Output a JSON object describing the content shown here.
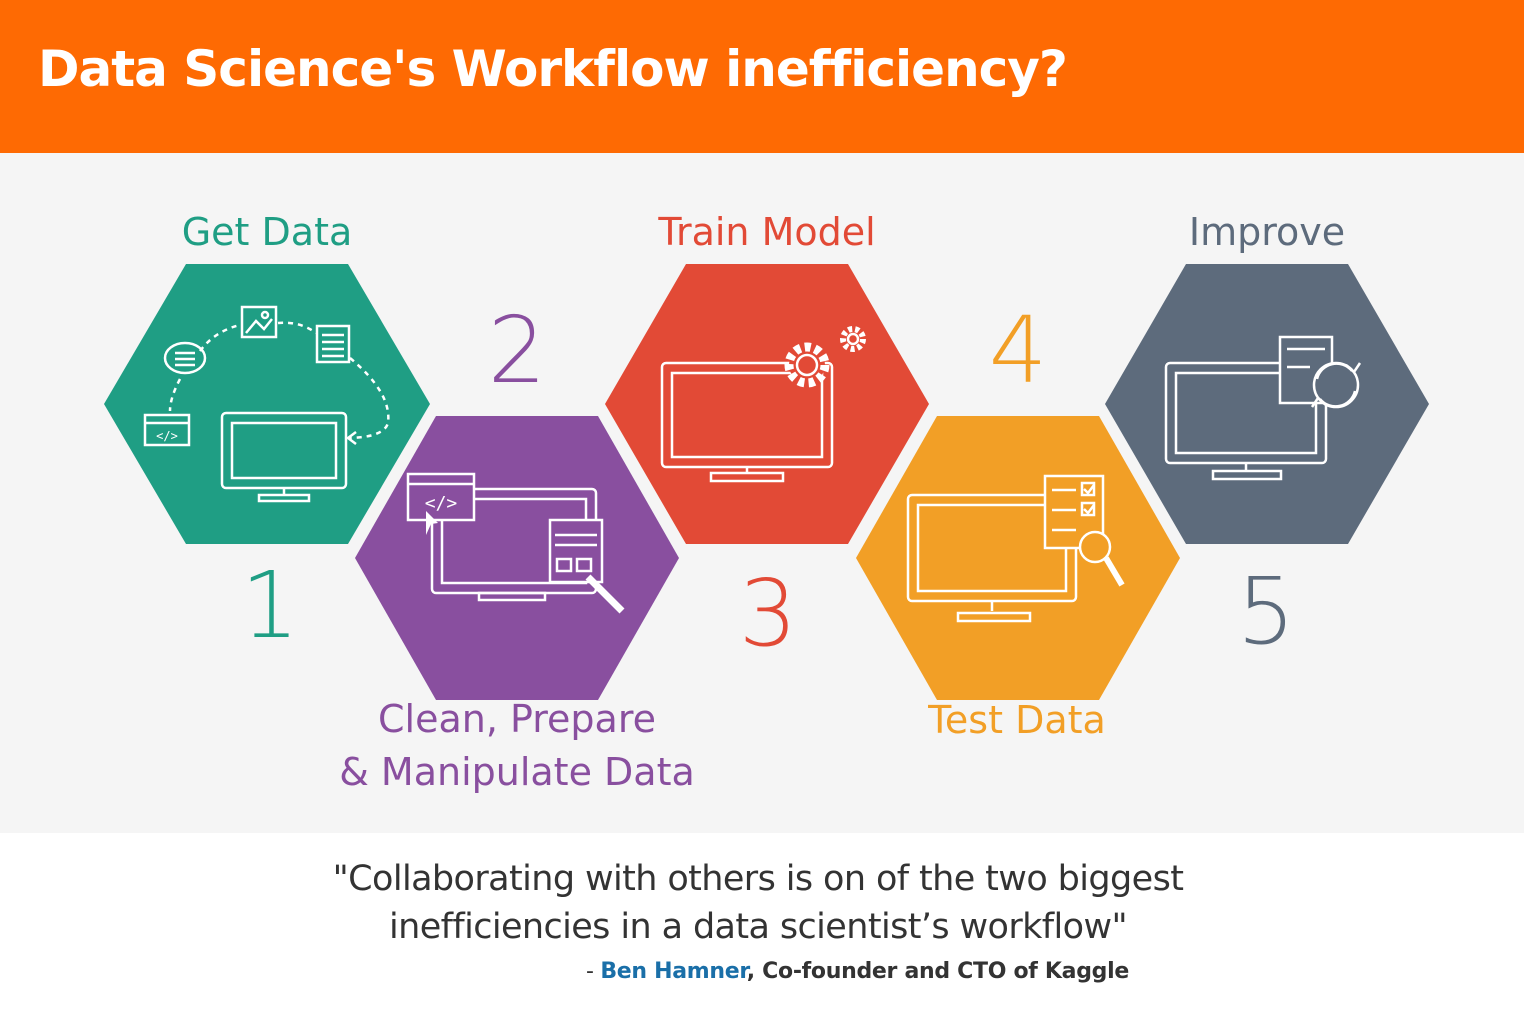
{
  "header": {
    "title": "Data Science's Workflow inefficiency?"
  },
  "steps": [
    {
      "number": "1",
      "label": "Get Data",
      "color": "#1f9e84",
      "icon": "data-sources-to-monitor-icon"
    },
    {
      "number": "2",
      "label_line1": "Clean, Prepare",
      "label_line2": "& Manipulate Data",
      "color": "#894f9f",
      "icon": "code-window-to-monitor-icon"
    },
    {
      "number": "3",
      "label": "Train Model",
      "color": "#e24a36",
      "icon": "monitor-with-gears-icon"
    },
    {
      "number": "4",
      "label": "Test Data",
      "color": "#f29f26",
      "icon": "monitor-with-checklist-magnifier-icon"
    },
    {
      "number": "5",
      "label": "Improve",
      "color": "#5d6b7c",
      "icon": "monitor-with-refresh-document-icon"
    }
  ],
  "quote": {
    "line1": "\"Collaborating with others is on of the two biggest",
    "line2": "inefficiencies in a data scientist’s workflow\"",
    "prefix": "- ",
    "author": "Ben Hamner",
    "role": ", Co-founder and CTO of Kaggle"
  }
}
